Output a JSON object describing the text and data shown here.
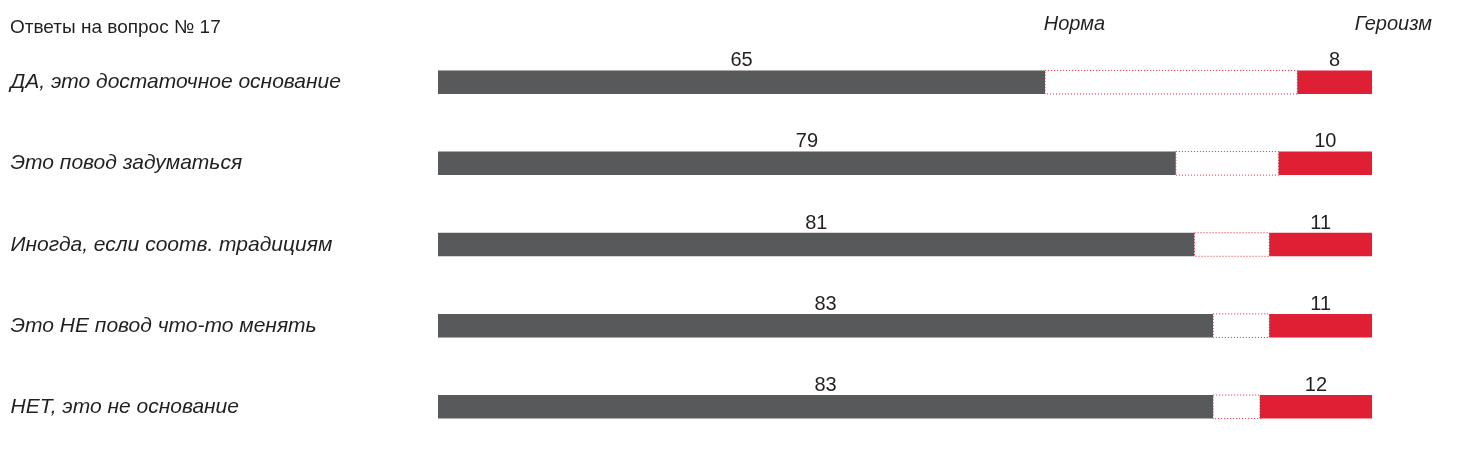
{
  "chart_data": {
    "type": "bar",
    "orientation": "horizontal",
    "stacked": true,
    "title": "Ответы на вопрос № 17",
    "categories": [
      "ДА, это достаточное основание",
      "Это повод задуматься",
      "Иногда, если соотв. традициям",
      "Это НЕ повод что-то менять",
      "НЕТ, это не основание"
    ],
    "series": [
      {
        "name": "Норма",
        "color": "#58595b",
        "values": [
          65,
          79,
          81,
          83,
          83
        ],
        "value_labels": [
          "65",
          "79",
          "81",
          "83",
          "83"
        ]
      },
      {
        "color": "#ffffff",
        "values": [
          27,
          11,
          8,
          6,
          5
        ],
        "line_style": "dotted"
      },
      {
        "name": "Героизм",
        "color": "#df2034",
        "values": [
          8,
          10,
          11,
          11,
          12
        ],
        "value_labels": [
          "8",
          "10",
          "11",
          "11",
          "12"
        ]
      }
    ],
    "legend": false
  }
}
